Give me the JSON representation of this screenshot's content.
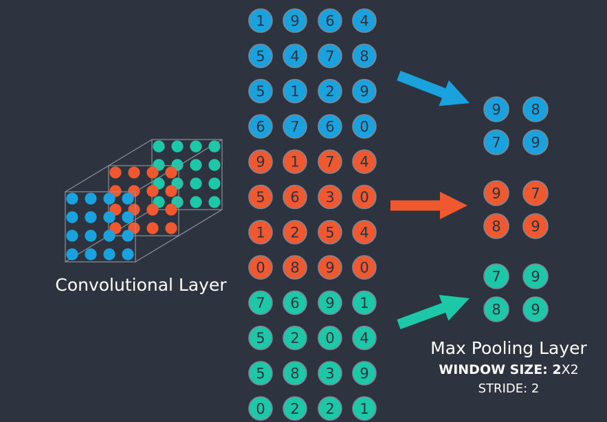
{
  "colors": {
    "background": "#2e343f",
    "blue": "#1aa2df",
    "orange": "#f0582f",
    "teal": "#1cc8a8",
    "circle_border": "#7d8794",
    "digit": "#2b3440",
    "cube_line": "#8a929c"
  },
  "input_rows": [
    {
      "color": "blue",
      "values": [
        "1",
        "9",
        "6",
        "4"
      ]
    },
    {
      "color": "blue",
      "values": [
        "5",
        "4",
        "7",
        "8"
      ]
    },
    {
      "color": "blue",
      "values": [
        "5",
        "1",
        "2",
        "9"
      ]
    },
    {
      "color": "blue",
      "values": [
        "6",
        "7",
        "6",
        "0"
      ]
    },
    {
      "color": "orange",
      "values": [
        "9",
        "1",
        "7",
        "4"
      ]
    },
    {
      "color": "orange",
      "values": [
        "5",
        "6",
        "3",
        "0"
      ]
    },
    {
      "color": "orange",
      "values": [
        "1",
        "2",
        "5",
        "4"
      ]
    },
    {
      "color": "orange",
      "values": [
        "0",
        "8",
        "9",
        "0"
      ]
    },
    {
      "color": "teal",
      "values": [
        "7",
        "6",
        "9",
        "1"
      ]
    },
    {
      "color": "teal",
      "values": [
        "5",
        "2",
        "0",
        "4"
      ]
    },
    {
      "color": "teal",
      "values": [
        "5",
        "8",
        "3",
        "9"
      ]
    },
    {
      "color": "teal",
      "values": [
        "0",
        "2",
        "2",
        "1"
      ]
    }
  ],
  "output_grids": [
    {
      "color": "blue",
      "values": [
        [
          "9",
          "8"
        ],
        [
          "7",
          "9"
        ]
      ]
    },
    {
      "color": "orange",
      "values": [
        [
          "9",
          "7"
        ],
        [
          "8",
          "9"
        ]
      ]
    },
    {
      "color": "teal",
      "values": [
        [
          "7",
          "9"
        ],
        [
          "8",
          "9"
        ]
      ]
    }
  ],
  "arrows": [
    {
      "color": "blue",
      "icon": "arrow-down-right-icon"
    },
    {
      "color": "orange",
      "icon": "arrow-right-icon"
    },
    {
      "color": "teal",
      "icon": "arrow-up-right-icon"
    }
  ],
  "conv_layer": {
    "label": "Convolutional Layer",
    "layers": [
      "teal",
      "orange",
      "blue"
    ]
  },
  "pool_layer": {
    "label": "Max Pooling Layer",
    "window_key": "WINDOW SIZE: 2",
    "window_val": "X2",
    "stride": "STRIDE: 2"
  }
}
